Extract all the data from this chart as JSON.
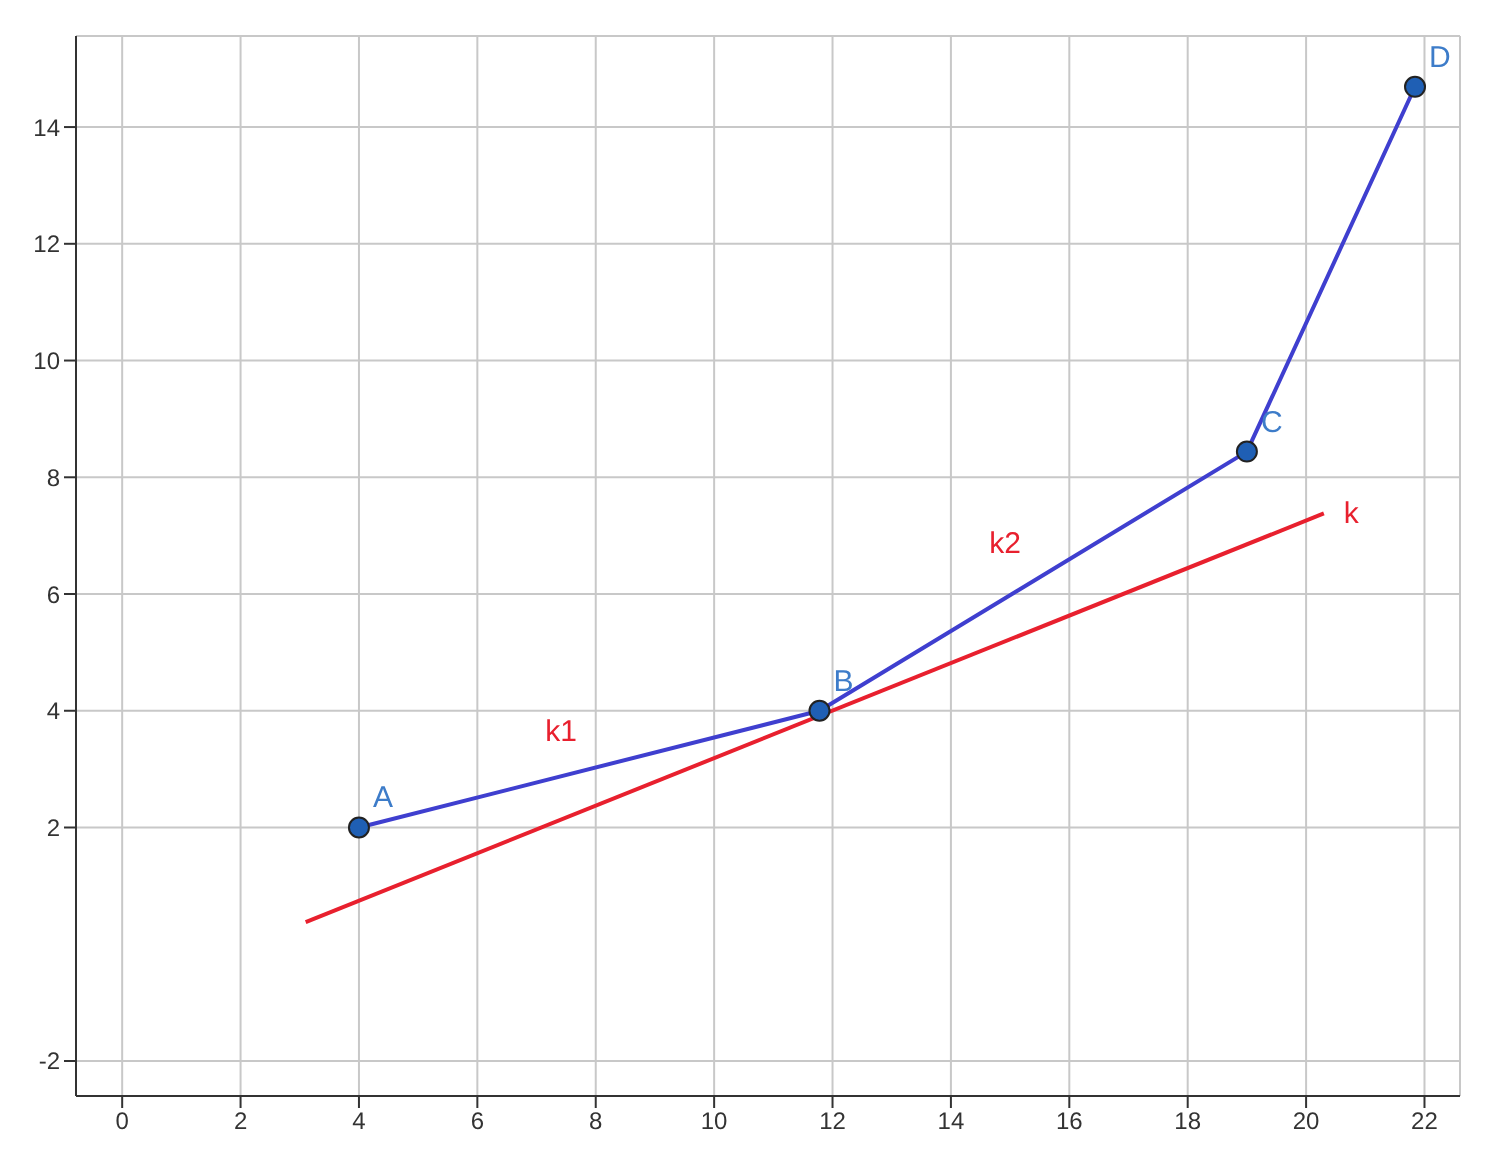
{
  "chart_data": {
    "type": "line",
    "xlim": [
      -0.78,
      22.6
    ],
    "ylim": [
      -2.6,
      15.56
    ],
    "xticks": [
      0,
      2,
      4,
      6,
      8,
      10,
      12,
      14,
      16,
      18,
      20,
      22
    ],
    "yticks": [
      -2,
      2,
      4,
      6,
      8,
      10,
      12,
      14
    ],
    "grid": true,
    "series": [
      {
        "color": "#3f3fcf",
        "marker": "circle",
        "x": [
          4,
          11.78,
          19,
          21.84
        ],
        "values": [
          2,
          4,
          8.44,
          14.69
        ]
      },
      {
        "color": "#e8202e",
        "marker": "none",
        "x": [
          3.1,
          20.3
        ],
        "values": [
          0.38,
          7.38
        ]
      }
    ],
    "annotations": [
      {
        "text": "A",
        "x": 4,
        "y": 2
      },
      {
        "text": "B",
        "x": 11.78,
        "y": 4
      },
      {
        "text": "C",
        "x": 19,
        "y": 8.44
      },
      {
        "text": "D",
        "x": 21.84,
        "y": 14.69
      },
      {
        "text": "k1",
        "x": 7.89,
        "y": 3
      },
      {
        "text": "k2",
        "x": 15.39,
        "y": 6.22
      },
      {
        "text": "k",
        "x": 20.3,
        "y": 7.38
      }
    ]
  }
}
